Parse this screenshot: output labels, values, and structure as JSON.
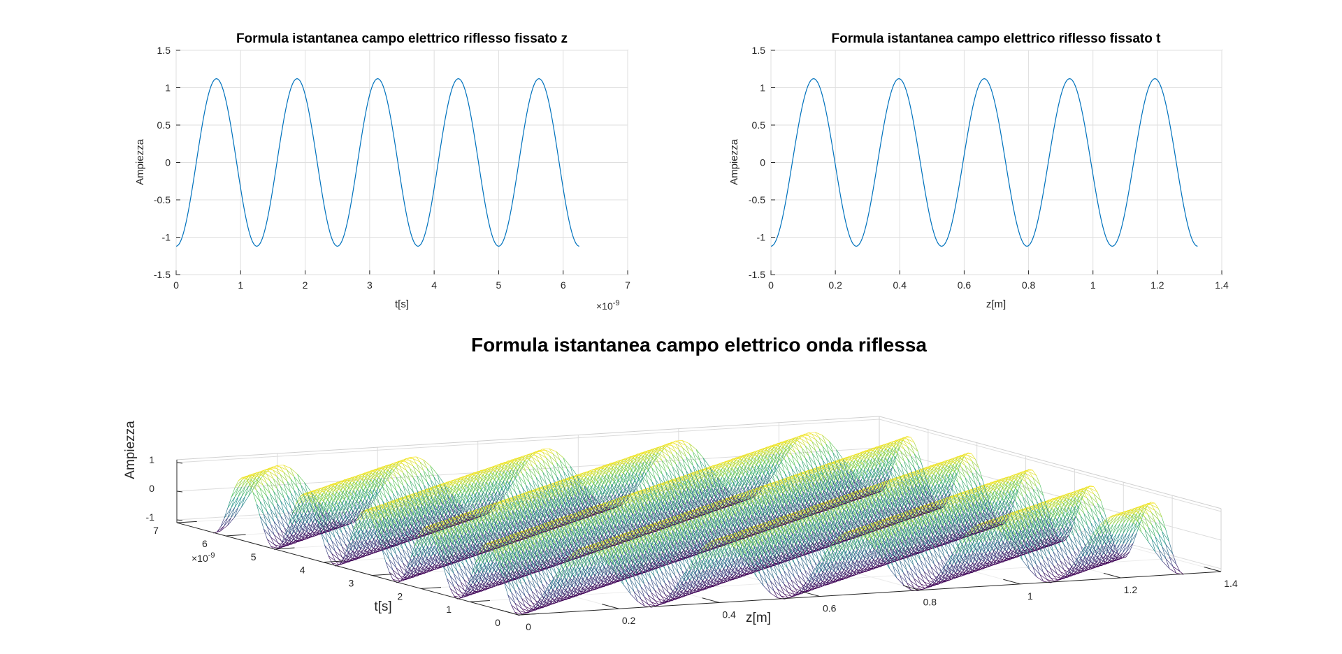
{
  "chart_data": [
    {
      "type": "line",
      "title": "Formula istantanea campo elettrico riflesso fissato z",
      "xlabel": "t[s]",
      "ylabel": "Ampiezza",
      "x_exponent_label": "×10",
      "x_exponent_power": "-9",
      "xlim": [
        0,
        7
      ],
      "ylim": [
        -1.5,
        1.5
      ],
      "xticks": [
        "0",
        "1",
        "2",
        "3",
        "4",
        "5",
        "6",
        "7"
      ],
      "yticks": [
        "1.5",
        "1",
        "0.5",
        "0",
        "-0.5",
        "-1",
        "-1.5"
      ],
      "grid": true,
      "series": [
        {
          "color": "#0072BD",
          "amplitude": 1.12,
          "period": 1.25,
          "phase_min_at": 0,
          "x_start": 0,
          "x_end": 6.25
        }
      ]
    },
    {
      "type": "line",
      "title": "Formula istantanea campo elettrico riflesso fissato t",
      "xlabel": "z[m]",
      "ylabel": "Ampiezza",
      "xlim": [
        0,
        1.4
      ],
      "ylim": [
        -1.5,
        1.5
      ],
      "xticks": [
        "0",
        "0.2",
        "0.4",
        "0.6",
        "0.8",
        "1",
        "1.2",
        "1.4"
      ],
      "yticks": [
        "1.5",
        "1",
        "0.5",
        "0",
        "-0.5",
        "-1",
        "-1.5"
      ],
      "grid": true,
      "series": [
        {
          "color": "#0072BD",
          "amplitude": 1.12,
          "period": 0.265,
          "phase_min_at": 0,
          "x_start": 0,
          "x_end": 1.325
        }
      ]
    },
    {
      "type": "surface",
      "title": "Formula istantanea campo elettrico onda riflessa",
      "xlabel": "z[m]",
      "ylabel": "t[s]",
      "zlabel": "Ampiezza",
      "y_exponent_label": "×10",
      "y_exponent_power": "-9",
      "xlim": [
        0,
        1.4
      ],
      "ylim": [
        0,
        7
      ],
      "zlim": [
        -1.1,
        1.1
      ],
      "xticks": [
        "0",
        "0.2",
        "0.4",
        "0.6",
        "0.8",
        "1",
        "1.2",
        "1.4"
      ],
      "yticks": [
        "0",
        "1",
        "2",
        "3",
        "4",
        "5",
        "6",
        "7"
      ],
      "zticks": [
        "-1",
        "0",
        "1"
      ],
      "colormap": [
        "#440154",
        "#3b528b",
        "#21918c",
        "#5ec962",
        "#fde725"
      ],
      "amplitude": 1.12,
      "z_period": 0.265,
      "t_period": 1.25,
      "z_extent": 1.325,
      "t_extent": 6.25
    }
  ]
}
